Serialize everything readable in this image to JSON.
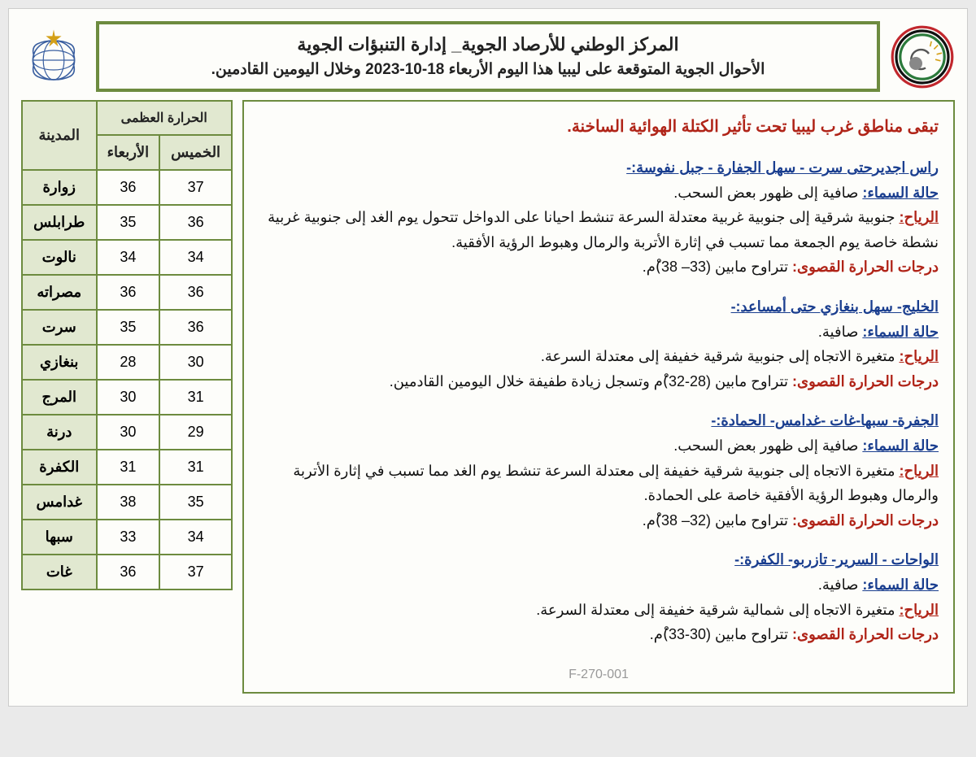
{
  "header": {
    "line1": "المركز الوطني للأرصاد الجوية_ إدارة التنبؤات الجوية",
    "line2": "الأحوال الجوية المتوقعة على ليبيا هذا اليوم الأربعاء 18-10-2023 وخلال اليومين القادمين."
  },
  "intro": "تبقى مناطق غرب ليبيا تحت تأثير الكتلة الهوائية الساخنة.",
  "labels": {
    "sky": "حالة السماء:",
    "wind": "الرياح:",
    "temp": "درجات الحرارة القصوى:"
  },
  "regions": [
    {
      "title": "راس اجديرحتى سرت - سهل الجفارة - جبل نفوسة:-",
      "sky": " صافية إلى ظهور بعض السحب.",
      "wind": " جنوبية شرقية إلى جنوبية غربية معتدلة السرعة تنشط احيانا على الدواخل تتحول يوم الغد إلى جنوبية غربية نشطة خاصة يوم الجمعة مما تسبب في إثارة الأتربة والرمال وهبوط الرؤية الأفقية.",
      "temp": " تتراوح مابين (33– 38)ْم."
    },
    {
      "title": "الخليج- سهل بنغازي حتى أمساعد:-",
      "sky": " صافية.",
      "wind": " متغيرة الاتجاه إلى جنوبية شرقية خفيفة إلى معتدلة السرعة.",
      "temp": " تتراوح مابين (28-32)ْم وتسجل زيادة طفيفة خلال اليومين القادمين."
    },
    {
      "title": "الجفرة- سبها-غات -غدامس- الحمادة:-",
      "sky": " صافية إلى ظهور بعض السحب.",
      "wind": " متغيرة الاتجاه إلى جنوبية شرقية خفيفة إلى معتدلة السرعة تنشط يوم الغد مما تسبب في إثارة الأتربة والرمال وهبوط الرؤية الأفقية خاصة على الحمادة.",
      "temp": " تتراوح مابين (32– 38)ْم."
    },
    {
      "title": "الواحات - السرير- تازربو- الكفرة:-",
      "sky": " صافية.",
      "wind": " متغيرة الاتجاه إلى شمالية شرقية خفيفة إلى معتدلة السرعة.",
      "temp": " تتراوح مابين (30-33)ْم."
    }
  ],
  "doc_code": "F-270-001",
  "table": {
    "max_temp_header": "الحرارة العظمى",
    "city_header": "المدينة",
    "day1": "الأربعاء",
    "day2": "الخميس",
    "rows": [
      {
        "city": "زوارة",
        "d1": "36",
        "d2": "37"
      },
      {
        "city": "طرابلس",
        "d1": "35",
        "d2": "36"
      },
      {
        "city": "نالوت",
        "d1": "34",
        "d2": "34"
      },
      {
        "city": "مصراته",
        "d1": "36",
        "d2": "36"
      },
      {
        "city": "سرت",
        "d1": "35",
        "d2": "36"
      },
      {
        "city": "بنغازي",
        "d1": "28",
        "d2": "30"
      },
      {
        "city": "المرج",
        "d1": "30",
        "d2": "31"
      },
      {
        "city": "درنة",
        "d1": "30",
        "d2": "29"
      },
      {
        "city": "الكفرة",
        "d1": "31",
        "d2": "31"
      },
      {
        "city": "غدامس",
        "d1": "38",
        "d2": "35"
      },
      {
        "city": "سبها",
        "d1": "33",
        "d2": "34"
      },
      {
        "city": "غات",
        "d1": "36",
        "d2": "37"
      }
    ]
  },
  "colors": {
    "border_green": "#6d8b3f",
    "header_bg": "#e1e8d0",
    "red": "#b02418",
    "blue": "#1a3e8f"
  }
}
